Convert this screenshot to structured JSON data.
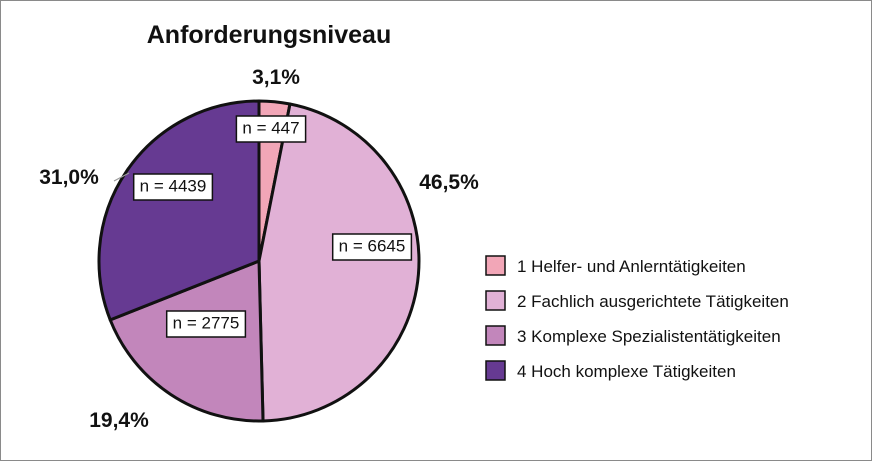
{
  "chart_data": {
    "type": "pie",
    "title": "Anforderungsniveau",
    "series": [
      {
        "name": "1   Helfer- und Anlerntätigkeiten",
        "value": 3.1,
        "percent_label": "3,1%",
        "n_label": "n = 447",
        "color": "#f2a6b7"
      },
      {
        "name": "2   Fachlich ausgerichtete Tätigkeiten",
        "value": 46.5,
        "percent_label": "46,5%",
        "n_label": "n = 6645",
        "color": "#e1b1d6"
      },
      {
        "name": "3   Komplexe Spezialistentätigkeiten",
        "value": 19.4,
        "percent_label": "19,4%",
        "n_label": "n = 2775",
        "color": "#c286bb"
      },
      {
        "name": "4   Hoch komplexe Tätigkeiten",
        "value": 31.0,
        "percent_label": "31,0%",
        "n_label": "n = 4439",
        "color": "#663a92"
      }
    ],
    "legend": "right"
  }
}
